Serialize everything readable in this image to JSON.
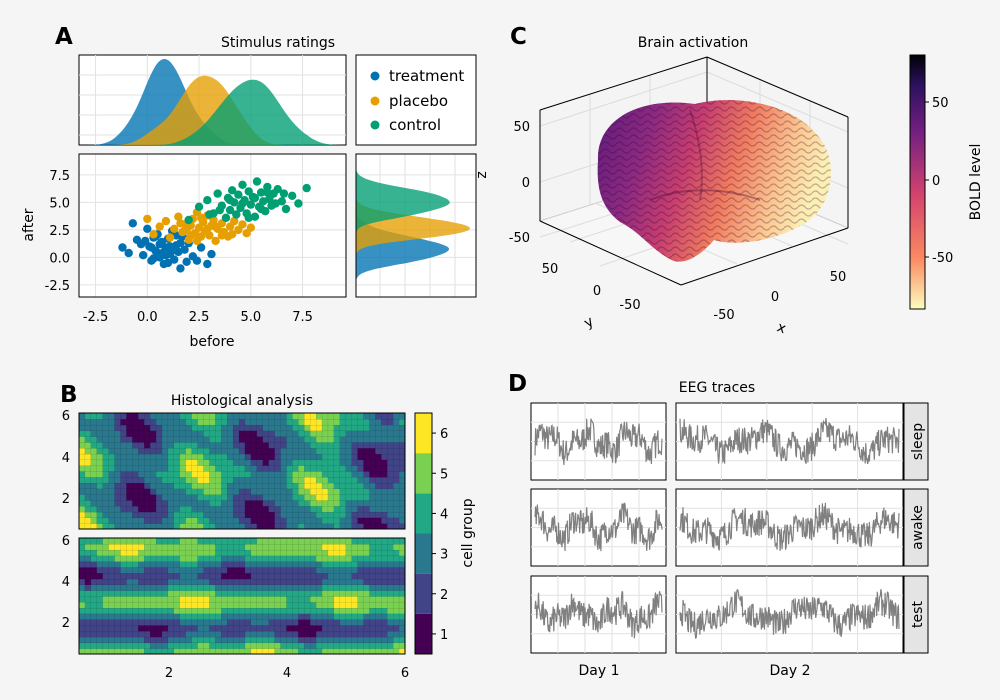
{
  "panels": {
    "a": {
      "letter": "A"
    },
    "b": {
      "letter": "B"
    },
    "c": {
      "letter": "C"
    },
    "d": {
      "letter": "D"
    }
  },
  "colors": {
    "treatment": "#0072b2",
    "placebo": "#e69f00",
    "control": "#009e73",
    "trace": "#808080"
  },
  "chart_data": [
    {
      "id": "stimulus-ratings",
      "type": "scatter",
      "title": "Stimulus ratings",
      "xlabel": "before",
      "ylabel": "after",
      "xlim": [
        -3.3,
        9.6
      ],
      "ylim": [
        -3.6,
        9.4
      ],
      "xticks": [
        "-2.5",
        "0.0",
        "2.5",
        "5.0",
        "7.5"
      ],
      "yticks": [
        "-2.5",
        "0.0",
        "2.5",
        "5.0",
        "7.5"
      ],
      "grid": true,
      "legend_position": "right",
      "series": [
        {
          "name": "treatment",
          "points": [
            [
              -1.2,
              0.9
            ],
            [
              -0.9,
              0.4
            ],
            [
              -0.7,
              3.1
            ],
            [
              -0.5,
              1.6
            ],
            [
              -0.3,
              1.2
            ],
            [
              -0.2,
              0.2
            ],
            [
              0.0,
              2.6
            ],
            [
              0.1,
              1.0
            ],
            [
              0.2,
              -0.3
            ],
            [
              0.3,
              1.8
            ],
            [
              0.4,
              0.6
            ],
            [
              0.5,
              2.1
            ],
            [
              0.6,
              0.0
            ],
            [
              0.7,
              1.4
            ],
            [
              0.8,
              -0.6
            ],
            [
              0.9,
              0.9
            ],
            [
              1.0,
              1.7
            ],
            [
              1.1,
              0.3
            ],
            [
              1.2,
              2.4
            ],
            [
              1.3,
              -0.2
            ],
            [
              1.4,
              1.1
            ],
            [
              1.5,
              0.5
            ],
            [
              1.6,
              -1.0
            ],
            [
              1.7,
              1.9
            ],
            [
              1.8,
              0.7
            ],
            [
              1.9,
              -0.4
            ],
            [
              2.0,
              1.3
            ],
            [
              2.2,
              0.1
            ],
            [
              2.4,
              -0.3
            ],
            [
              2.6,
              0.9
            ],
            [
              2.9,
              -0.6
            ],
            [
              3.1,
              0.3
            ],
            [
              0.2,
              0.9
            ],
            [
              0.5,
              0.4
            ],
            [
              0.9,
              0.2
            ],
            [
              1.1,
              1.0
            ],
            [
              0.6,
              1.2
            ],
            [
              -0.1,
              1.5
            ],
            [
              1.4,
              2.0
            ],
            [
              0.3,
              -0.1
            ],
            [
              0.8,
              0.5
            ],
            [
              1.6,
              1.3
            ],
            [
              1.0,
              -0.5
            ],
            [
              0.4,
              1.9
            ],
            [
              1.3,
              0.7
            ]
          ]
        },
        {
          "name": "placebo",
          "points": [
            [
              0.0,
              3.5
            ],
            [
              0.3,
              2.1
            ],
            [
              0.6,
              2.8
            ],
            [
              0.9,
              3.3
            ],
            [
              1.1,
              1.8
            ],
            [
              1.3,
              2.6
            ],
            [
              1.5,
              3.7
            ],
            [
              1.7,
              2.3
            ],
            [
              1.8,
              3.0
            ],
            [
              2.0,
              1.6
            ],
            [
              2.1,
              2.9
            ],
            [
              2.2,
              3.5
            ],
            [
              2.3,
              2.2
            ],
            [
              2.4,
              4.1
            ],
            [
              2.5,
              2.7
            ],
            [
              2.6,
              1.9
            ],
            [
              2.7,
              3.2
            ],
            [
              2.8,
              2.4
            ],
            [
              2.9,
              3.8
            ],
            [
              3.0,
              2.0
            ],
            [
              3.1,
              2.9
            ],
            [
              3.2,
              3.4
            ],
            [
              3.3,
              1.5
            ],
            [
              3.4,
              2.6
            ],
            [
              3.5,
              4.3
            ],
            [
              3.6,
              3.1
            ],
            [
              3.7,
              2.3
            ],
            [
              3.8,
              3.6
            ],
            [
              3.9,
              1.9
            ],
            [
              4.0,
              2.8
            ],
            [
              4.2,
              3.3
            ],
            [
              4.4,
              2.5
            ],
            [
              4.6,
              3.0
            ],
            [
              4.8,
              2.2
            ],
            [
              5.0,
              2.7
            ],
            [
              1.9,
              2.5
            ],
            [
              2.6,
              3.6
            ],
            [
              3.3,
              2.8
            ],
            [
              2.1,
              2.0
            ],
            [
              2.9,
              2.6
            ],
            [
              3.6,
              2.0
            ],
            [
              1.6,
              3.1
            ],
            [
              4.1,
              2.1
            ],
            [
              2.4,
              1.5
            ]
          ]
        },
        {
          "name": "control",
          "points": [
            [
              2.0,
              3.4
            ],
            [
              2.5,
              4.6
            ],
            [
              2.9,
              5.2
            ],
            [
              3.2,
              4.0
            ],
            [
              3.4,
              5.8
            ],
            [
              3.6,
              4.7
            ],
            [
              3.8,
              3.6
            ],
            [
              3.9,
              5.4
            ],
            [
              4.0,
              4.3
            ],
            [
              4.1,
              6.1
            ],
            [
              4.2,
              5.0
            ],
            [
              4.3,
              3.9
            ],
            [
              4.4,
              5.7
            ],
            [
              4.5,
              4.5
            ],
            [
              4.6,
              6.6
            ],
            [
              4.7,
              5.2
            ],
            [
              4.8,
              4.0
            ],
            [
              4.9,
              6.0
            ],
            [
              5.0,
              4.8
            ],
            [
              5.1,
              5.5
            ],
            [
              5.2,
              3.7
            ],
            [
              5.3,
              6.9
            ],
            [
              5.4,
              4.6
            ],
            [
              5.5,
              5.9
            ],
            [
              5.6,
              5.1
            ],
            [
              5.7,
              4.2
            ],
            [
              5.8,
              6.4
            ],
            [
              5.9,
              5.3
            ],
            [
              6.0,
              4.7
            ],
            [
              6.1,
              5.8
            ],
            [
              6.2,
              4.9
            ],
            [
              6.3,
              6.2
            ],
            [
              6.5,
              5.1
            ],
            [
              6.7,
              4.4
            ],
            [
              7.0,
              5.6
            ],
            [
              7.3,
              4.9
            ],
            [
              7.7,
              6.3
            ],
            [
              3.5,
              4.3
            ],
            [
              4.6,
              4.9
            ],
            [
              5.2,
              5.4
            ],
            [
              4.0,
              5.2
            ],
            [
              5.5,
              4.4
            ],
            [
              6.6,
              5.8
            ],
            [
              4.9,
              3.6
            ],
            [
              3.0,
              3.9
            ],
            [
              5.8,
              5.9
            ]
          ]
        }
      ]
    },
    {
      "id": "brain-activation",
      "type": "surface-3d",
      "title": "Brain activation",
      "xlabel": "x",
      "ylabel": "y",
      "zlabel": "z",
      "ticks_x": [
        "-50",
        "0",
        "50"
      ],
      "ticks_y": [
        "-50",
        "0",
        "50"
      ],
      "ticks_z": [
        "-50",
        "0",
        "50"
      ],
      "colorbar": {
        "label": "BOLD level",
        "ticks": [
          "-50",
          "0",
          "50"
        ],
        "range": [
          -80,
          80
        ]
      }
    },
    {
      "id": "histological-analysis",
      "type": "heatmap",
      "title": "Histological analysis",
      "xticks": [
        "2",
        "4",
        "6"
      ],
      "yticks": [
        "2",
        "4",
        "6"
      ],
      "xlim": [
        0.5,
        6
      ],
      "ylim": [
        0.5,
        6
      ],
      "colorbar": {
        "label": "cell group",
        "ticks": [
          "1",
          "2",
          "3",
          "4",
          "5",
          "6"
        ]
      },
      "levels": [
        1,
        2,
        3,
        4,
        5,
        6
      ]
    },
    {
      "id": "eeg-traces",
      "type": "line",
      "title": "EEG traces",
      "columns": [
        "Day 1",
        "Day 2"
      ],
      "rows": [
        "sleep",
        "awake",
        "test"
      ]
    }
  ]
}
